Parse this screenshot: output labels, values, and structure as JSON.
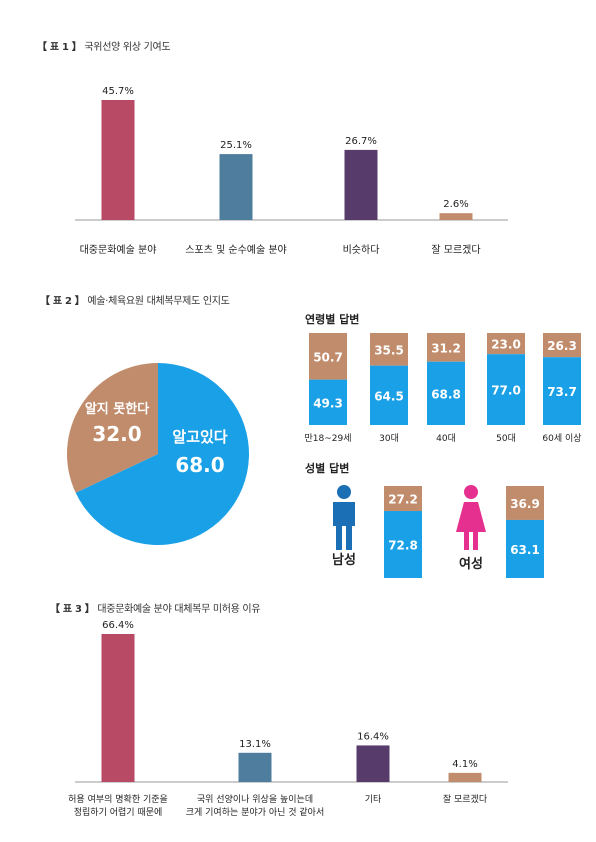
{
  "charts": {
    "t1": {
      "title_prefix": "【 표   1 】",
      "title_text": "국위선양 위상 기여도",
      "chart_data": {
        "type": "bar",
        "categories": [
          "대중문화예술 분야",
          "스포츠 및 순수예술 분야",
          "비슷하다",
          "잘 모르겠다"
        ],
        "values": [
          45.7,
          25.1,
          26.7,
          2.6
        ],
        "value_labels": [
          "45.7%",
          "25.1%",
          "26.7%",
          "2.6%"
        ],
        "colors": [
          "#b84a66",
          "#4f7d9e",
          "#573b6b",
          "#c18c6b"
        ]
      }
    },
    "t2": {
      "title_prefix": "【 표   2 】",
      "title_text": "예술·체육요원 대체복무제도 인지도",
      "pie": {
        "type": "pie",
        "slices": [
          {
            "label": "알고있다",
            "value": 68.0,
            "value_label": "68.0",
            "color": "#1aa0e6"
          },
          {
            "label": "알지 못한다",
            "value": 32.0,
            "value_label": "32.0",
            "color": "#c18c6b"
          }
        ]
      },
      "age": {
        "heading": "연령별 답변",
        "type": "stacked-bar",
        "categories": [
          "만18~29세",
          "30대",
          "40대",
          "50대",
          "60세 이상"
        ],
        "known": [
          49.3,
          64.5,
          68.8,
          77.0,
          73.7
        ],
        "known_labels": [
          "49.3",
          "64.5",
          "68.8",
          "77.0",
          "73.7"
        ],
        "unknown": [
          50.7,
          35.5,
          31.2,
          23.0,
          26.3
        ],
        "unknown_labels": [
          "50.7",
          "35.5",
          "31.2",
          "23.0",
          "26.3"
        ],
        "known_color": "#1aa0e6",
        "unknown_color": "#c18c6b"
      },
      "gender": {
        "heading": "성별 답변",
        "type": "stacked-bar",
        "categories": [
          "남성",
          "여성"
        ],
        "known": [
          72.8,
          63.1
        ],
        "known_labels": [
          "72.8",
          "63.1"
        ],
        "unknown": [
          27.2,
          36.9
        ],
        "unknown_labels": [
          "27.2",
          "36.9"
        ],
        "icon_colors": [
          "#1a6fb5",
          "#e6308f"
        ],
        "icons": [
          "male-icon",
          "female-icon"
        ]
      }
    },
    "t3": {
      "title_prefix": "【 표   3 】",
      "title_text": "대중문화예술 분야 대체복무 미허용 이유",
      "chart_data": {
        "type": "bar",
        "categories": [
          [
            "허용 여부의 명확한 기준을",
            "정립하기 어렵기 때문에"
          ],
          [
            "국위 선양이나 위상을 높이는데",
            "크게 기여하는 분야가 아닌 것 같아서"
          ],
          [
            "기타"
          ],
          [
            "잘 모르겠다"
          ]
        ],
        "values": [
          66.4,
          13.1,
          16.4,
          4.1
        ],
        "value_labels": [
          "66.4%",
          "13.1%",
          "16.4%",
          "4.1%"
        ],
        "colors": [
          "#b84a66",
          "#4f7d9e",
          "#573b6b",
          "#c18c6b"
        ]
      }
    }
  }
}
